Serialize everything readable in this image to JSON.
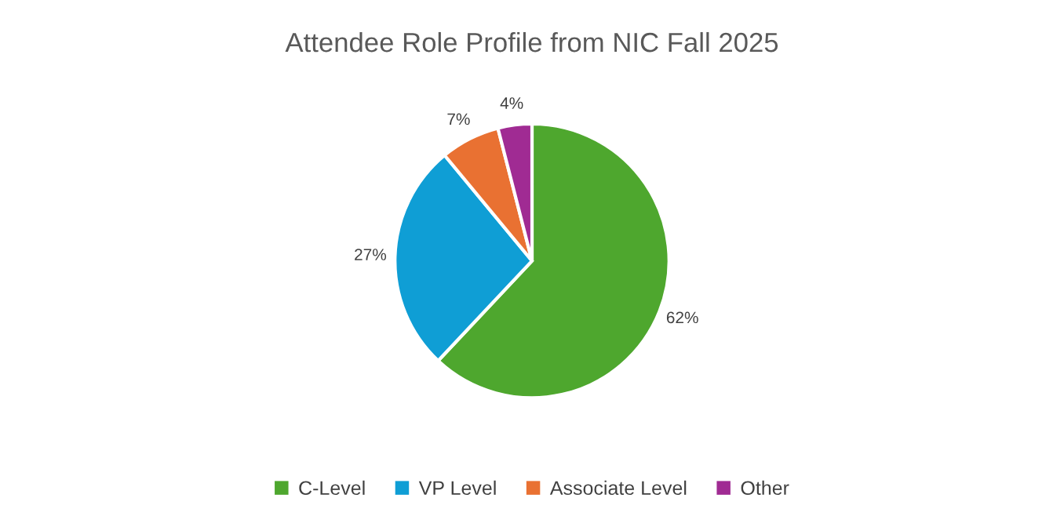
{
  "chart_data": {
    "type": "pie",
    "title": "Attendee Role Profile from NIC Fall 2025",
    "categories": [
      "C-Level",
      "VP Level",
      "Associate Level",
      "Other"
    ],
    "values": [
      62,
      27,
      7,
      4
    ],
    "colors": [
      "#4ea72e",
      "#0f9ed5",
      "#e97132",
      "#a02b93"
    ],
    "value_labels": [
      "62%",
      "27%",
      "7%",
      "4%"
    ],
    "legend": "bottom"
  }
}
